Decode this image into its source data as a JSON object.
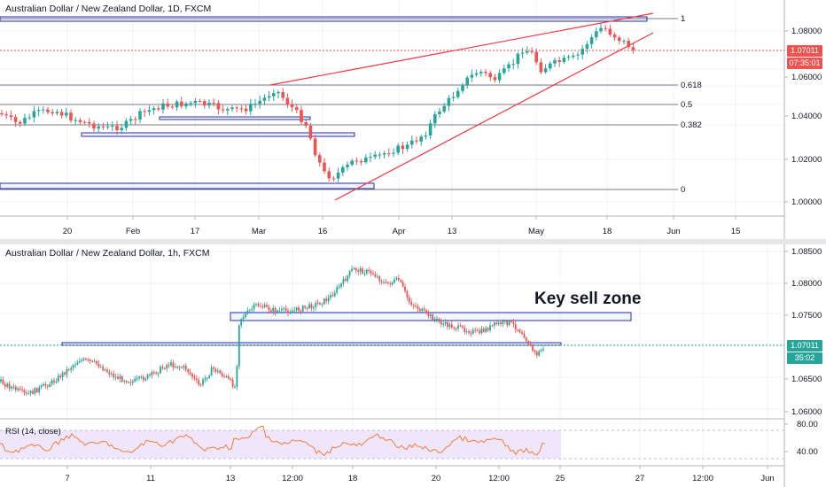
{
  "top_chart": {
    "title": "Australian Dollar / New Zealand Dollar, 1D, FXCM",
    "price_axis": [
      "1.08000",
      "1.06000",
      "1.04000",
      "1.02000",
      "1.00000"
    ],
    "time_axis": [
      "20",
      "Feb",
      "17",
      "Mar",
      "16",
      "Apr",
      "13",
      "May",
      "18",
      "Jun",
      "15"
    ],
    "fib_labels": [
      "1",
      "0.618",
      "0.5",
      "0.382",
      "0"
    ],
    "price_tag": "1.07011",
    "countdown_tag": "07:35:01",
    "colors": {
      "up": "#26a69a",
      "down": "#ef5350",
      "trend": "#f23645",
      "zone": "#2a2ea8",
      "fib": "#787b86",
      "tag": "#ef5350"
    }
  },
  "bottom_chart": {
    "title": "Australian Dollar / New Zealand Dollar, 1h, FXCM",
    "price_axis": [
      "1.08500",
      "1.08000",
      "1.07500",
      "1.06500",
      "1.06000"
    ],
    "time_axis": [
      "7",
      "11",
      "13",
      "12:00",
      "18",
      "20",
      "12:00",
      "25",
      "27",
      "12:00",
      "Jun"
    ],
    "price_tag": "1.07011",
    "countdown_tag": "35:02",
    "callout": "Key sell zone",
    "rsi": {
      "title": "RSI (14, close)",
      "axis": [
        "80.00",
        "40.00"
      ]
    },
    "colors": {
      "up": "#26a69a",
      "down": "#ef5350",
      "zone": "#2a2ea8",
      "tag": "#26a69a",
      "rsi_line": "#f57c35",
      "rsi_band": "#f0e6fb"
    }
  }
}
